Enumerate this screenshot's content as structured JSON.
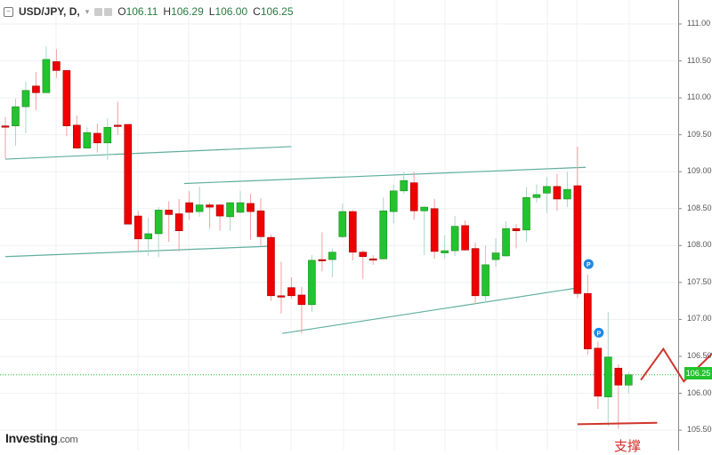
{
  "header": {
    "symbol": "USD/JPY, D,",
    "open_label": "O",
    "open": "106.11",
    "high_label": "H",
    "high": "106.29",
    "low_label": "L",
    "low": "106.00",
    "close_label": "C",
    "close": "106.25"
  },
  "logo": {
    "brand": "Investing",
    "suffix": ".com"
  },
  "annotation": {
    "support_text": "支撑"
  },
  "current_price": "106.25",
  "colors": {
    "up": "#22c32e",
    "down": "#f00000",
    "trendline": "#5fae9f",
    "annotation": "#d0342c",
    "current_price_line": "#22c32e",
    "marker": "#1e88e5"
  },
  "chart_data": {
    "type": "candlestick",
    "title": "",
    "ylim": [
      105.4,
      111.2
    ],
    "y_ticks": [
      "111.00",
      "110.50",
      "110.00",
      "109.50",
      "109.00",
      "108.50",
      "108.00",
      "107.50",
      "107.00",
      "106.50",
      "106.00",
      "105.50"
    ],
    "y_tick_values": [
      111.0,
      110.5,
      110.0,
      109.5,
      109.0,
      108.5,
      108.0,
      107.5,
      107.0,
      106.5,
      106.0,
      105.5
    ],
    "grid": true,
    "ohlc": [
      [
        109.62,
        109.74,
        109.18,
        109.61
      ],
      [
        109.62,
        109.99,
        109.35,
        109.88
      ],
      [
        109.88,
        110.22,
        109.52,
        110.1
      ],
      [
        110.16,
        110.35,
        109.83,
        110.07
      ],
      [
        110.07,
        110.7,
        110.07,
        110.52
      ],
      [
        110.49,
        110.66,
        110.27,
        110.37
      ],
      [
        110.37,
        110.37,
        109.48,
        109.62
      ],
      [
        109.63,
        109.76,
        109.31,
        109.32
      ],
      [
        109.32,
        109.6,
        109.31,
        109.53
      ],
      [
        109.52,
        109.65,
        109.26,
        109.39
      ],
      [
        109.39,
        109.72,
        109.16,
        109.6
      ],
      [
        109.63,
        109.95,
        109.5,
        109.62
      ],
      [
        109.64,
        109.64,
        108.29,
        108.29
      ],
      [
        108.4,
        108.47,
        107.92,
        108.09
      ],
      [
        108.09,
        108.38,
        107.86,
        108.16
      ],
      [
        108.16,
        108.52,
        107.84,
        108.48
      ],
      [
        108.48,
        108.6,
        108.05,
        108.42
      ],
      [
        108.43,
        108.63,
        107.92,
        108.2
      ],
      [
        108.58,
        108.74,
        108.35,
        108.45
      ],
      [
        108.46,
        108.8,
        108.39,
        108.55
      ],
      [
        108.55,
        108.58,
        108.23,
        108.52
      ],
      [
        108.55,
        108.56,
        108.2,
        108.4
      ],
      [
        108.39,
        108.59,
        108.2,
        108.58
      ],
      [
        108.45,
        108.74,
        108.43,
        108.58
      ],
      [
        108.57,
        108.7,
        108.08,
        108.46
      ],
      [
        108.47,
        108.64,
        108.0,
        108.12
      ],
      [
        108.11,
        108.15,
        107.25,
        107.32
      ],
      [
        107.32,
        107.78,
        107.08,
        107.31
      ],
      [
        107.43,
        107.57,
        107.28,
        107.32
      ],
      [
        107.33,
        107.44,
        106.81,
        107.2
      ],
      [
        107.2,
        107.87,
        107.1,
        107.8
      ],
      [
        107.81,
        108.18,
        107.65,
        107.8
      ],
      [
        107.81,
        107.96,
        107.57,
        107.91
      ],
      [
        108.12,
        108.57,
        108.1,
        108.46
      ],
      [
        108.46,
        108.48,
        107.8,
        107.91
      ],
      [
        107.91,
        107.94,
        107.55,
        107.85
      ],
      [
        107.82,
        107.87,
        107.74,
        107.81
      ],
      [
        107.82,
        108.65,
        107.81,
        108.47
      ],
      [
        108.46,
        108.82,
        108.3,
        108.74
      ],
      [
        108.74,
        109.0,
        108.7,
        108.88
      ],
      [
        108.85,
        109.0,
        108.35,
        108.47
      ],
      [
        108.47,
        108.53,
        107.87,
        108.52
      ],
      [
        108.5,
        108.63,
        107.82,
        107.92
      ],
      [
        107.9,
        108.14,
        107.82,
        107.93
      ],
      [
        107.93,
        108.4,
        107.86,
        108.26
      ],
      [
        108.27,
        108.34,
        107.93,
        107.94
      ],
      [
        107.96,
        108.04,
        107.21,
        107.32
      ],
      [
        107.32,
        108.0,
        107.23,
        107.74
      ],
      [
        107.81,
        108.1,
        107.71,
        107.9
      ],
      [
        107.86,
        108.33,
        107.85,
        108.23
      ],
      [
        108.23,
        108.29,
        107.96,
        108.2
      ],
      [
        108.21,
        108.79,
        108.05,
        108.65
      ],
      [
        108.65,
        108.83,
        108.58,
        108.69
      ],
      [
        108.71,
        108.93,
        108.44,
        108.8
      ],
      [
        108.8,
        108.97,
        108.47,
        108.63
      ],
      [
        108.63,
        109.0,
        108.52,
        108.76
      ],
      [
        108.81,
        109.34,
        107.29,
        107.35
      ],
      [
        107.35,
        107.61,
        106.52,
        106.6
      ],
      [
        106.61,
        106.7,
        105.79,
        105.96
      ],
      [
        105.95,
        107.1,
        105.55,
        106.49
      ],
      [
        106.34,
        106.39,
        105.52,
        106.11
      ],
      [
        106.11,
        106.29,
        106.0,
        106.25
      ]
    ],
    "trendlines": [
      [
        [
          0,
          109.17
        ],
        [
          28,
          109.34
        ]
      ],
      [
        [
          17.5,
          108.84
        ],
        [
          56.8,
          109.06
        ]
      ],
      [
        [
          0,
          107.85
        ],
        [
          25.8,
          107.99
        ]
      ],
      [
        [
          27.1,
          106.81
        ],
        [
          55.7,
          107.42
        ]
      ]
    ],
    "markers": [
      {
        "index": 57,
        "label": "P",
        "price": 107.75
      },
      {
        "index": 58,
        "label": "P",
        "price": 106.82
      }
    ],
    "support_line": [
      [
        56,
        105.58
      ],
      [
        63.8,
        105.6
      ]
    ],
    "projection_zigzag": [
      [
        62.2,
        106.18
      ],
      [
        64.4,
        106.6
      ],
      [
        66.4,
        106.16
      ],
      [
        69.2,
        106.54
      ]
    ]
  }
}
